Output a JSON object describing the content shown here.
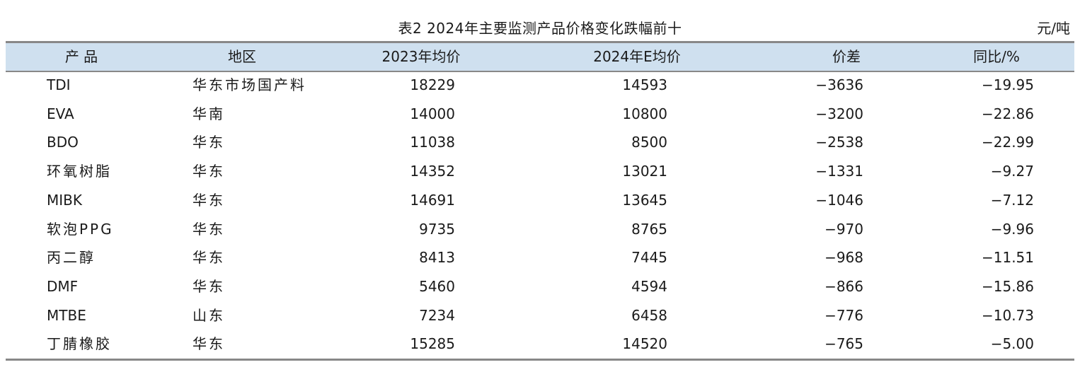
{
  "table": {
    "title": "表2  2024年主要监测产品价格变化跌幅前十",
    "unit": "元/吨",
    "headers": [
      "产 品",
      "地区",
      "2023年均价",
      "2024年E均价",
      "价差",
      "同比/%"
    ],
    "rows": [
      [
        "TDI",
        "华东市场国产料",
        "18229",
        "14593",
        "−3636",
        "−19.95"
      ],
      [
        "EVA",
        "华南",
        "14000",
        "10800",
        "−3200",
        "−22.86"
      ],
      [
        "BDO",
        "华东",
        "11038",
        "8500",
        "−2538",
        "−22.99"
      ],
      [
        "环氧树脂",
        "华东",
        "14352",
        "13021",
        "−1331",
        "−9.27"
      ],
      [
        "MIBK",
        "华东",
        "14691",
        "13645",
        "−1046",
        "−7.12"
      ],
      [
        "软泡PPG",
        "华东",
        "9735",
        "8765",
        "−970",
        "−9.96"
      ],
      [
        "丙二醇",
        "华东",
        "8413",
        "7445",
        "−968",
        "−11.51"
      ],
      [
        "DMF",
        "华东",
        "5460",
        "4594",
        "−866",
        "−15.86"
      ],
      [
        "MTBE",
        "山东",
        "7234",
        "6458",
        "−776",
        "−10.73"
      ],
      [
        "丁腈橡胶",
        "华东",
        "15285",
        "14520",
        "−765",
        "−5.00"
      ]
    ]
  }
}
